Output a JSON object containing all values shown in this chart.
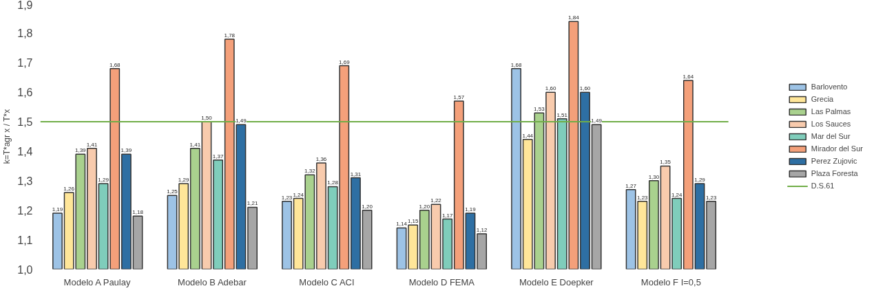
{
  "chart_data": {
    "type": "bar",
    "ylabel": "k=T*agr x / T*x",
    "categories": [
      "Modelo A Paulay",
      "Modelo B Adebar",
      "Modelo C ACI",
      "Modelo D FEMA",
      "Modelo E Doepker",
      "Modelo F I=0,5"
    ],
    "series": [
      {
        "name": "Barlovento",
        "color": "#9dc3e6",
        "values": [
          1.19,
          1.25,
          1.23,
          1.14,
          1.68,
          1.27
        ],
        "value_labels": [
          "1,19",
          "1,25",
          "1,23",
          "1,14",
          "1,68",
          "1,27"
        ]
      },
      {
        "name": "Grecia",
        "color": "#ffe699",
        "values": [
          1.26,
          1.29,
          1.24,
          1.15,
          1.44,
          1.23
        ],
        "value_labels": [
          "1,26",
          "1,29",
          "1,24",
          "1,15",
          "1,44",
          "1,23"
        ]
      },
      {
        "name": "Las Palmas",
        "color": "#a9d18e",
        "values": [
          1.39,
          1.41,
          1.32,
          1.2,
          1.53,
          1.3
        ],
        "value_labels": [
          "1,39",
          "1,41",
          "1,32",
          "1,20",
          "1,53",
          "1,30"
        ]
      },
      {
        "name": "Los Sauces",
        "color": "#f8cbad",
        "values": [
          1.41,
          1.5,
          1.36,
          1.22,
          1.6,
          1.35
        ],
        "value_labels": [
          "1,41",
          "1,50",
          "1,36",
          "1,22",
          "1,60",
          "1,35"
        ]
      },
      {
        "name": "Mar del Sur",
        "color": "#7fcdbb",
        "values": [
          1.29,
          1.37,
          1.28,
          1.17,
          1.51,
          1.24
        ],
        "value_labels": [
          "1,29",
          "1,37",
          "1,28",
          "1,17",
          "1,51",
          "1,24"
        ]
      },
      {
        "name": "Mirador del Sur",
        "color": "#f4a07a",
        "values": [
          1.68,
          1.78,
          1.69,
          1.57,
          1.84,
          1.64
        ],
        "value_labels": [
          "1,68",
          "1,78",
          "1,69",
          "1,57",
          "1,84",
          "1,64"
        ]
      },
      {
        "name": "Perez Zujovic",
        "color": "#2e6fa3",
        "values": [
          1.39,
          1.49,
          1.31,
          1.19,
          1.6,
          1.29
        ],
        "value_labels": [
          "1,39",
          "1,49",
          "1,31",
          "1,19",
          "1,60",
          "1,29"
        ]
      },
      {
        "name": "Plaza Foresta",
        "color": "#a6a6a6",
        "values": [
          1.18,
          1.21,
          1.2,
          1.12,
          1.49,
          1.23
        ],
        "value_labels": [
          "1,18",
          "1,21",
          "1,20",
          "1,12",
          "1,49",
          "1,23"
        ]
      }
    ],
    "ylim": [
      1.0,
      1.9
    ],
    "yticks": [
      {
        "value": 1.0,
        "label": "1,0"
      },
      {
        "value": 1.1,
        "label": "1,1"
      },
      {
        "value": 1.2,
        "label": "1,2"
      },
      {
        "value": 1.3,
        "label": "1,3"
      },
      {
        "value": 1.4,
        "label": "1,4"
      },
      {
        "value": 1.5,
        "label": "1,5"
      },
      {
        "value": 1.6,
        "label": "1,6"
      },
      {
        "value": 1.7,
        "label": "1,7"
      },
      {
        "value": 1.8,
        "label": "1,8"
      },
      {
        "value": 1.9,
        "label": "1,9"
      }
    ],
    "ref_lines": [
      {
        "axis": "y",
        "value": 1.5,
        "label": "D.S.61",
        "color": "#70ad47"
      }
    ],
    "grid": false,
    "legend": "right"
  }
}
